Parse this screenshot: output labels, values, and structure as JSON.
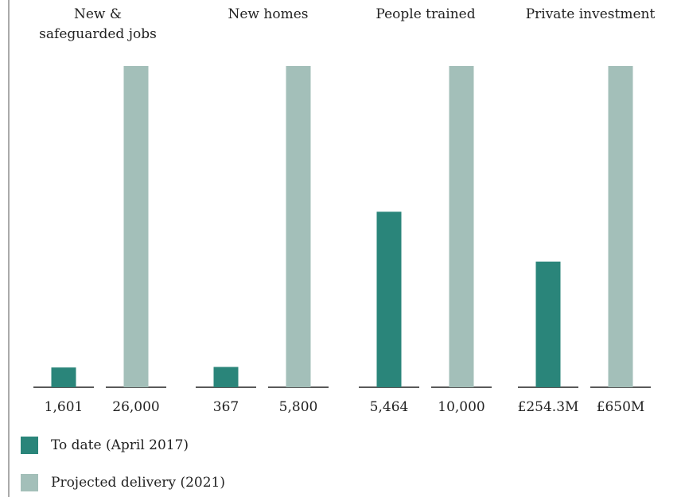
{
  "colors": {
    "to_date": "#2a857a",
    "projected": "#a3bfb9"
  },
  "legend": {
    "to_date_label": "To date (April 2017)",
    "projected_label": "Projected delivery (2021)"
  },
  "chart_data": {
    "type": "bar",
    "groups": [
      {
        "title": "New &\nsafeguarded jobs",
        "to_date": {
          "value": 1601,
          "label": "1,601"
        },
        "projected": {
          "value": 26000,
          "label": "26,000"
        },
        "unit": "jobs"
      },
      {
        "title": "New homes",
        "to_date": {
          "value": 367,
          "label": "367"
        },
        "projected": {
          "value": 5800,
          "label": "5,800"
        },
        "unit": "homes"
      },
      {
        "title": "People trained",
        "to_date": {
          "value": 5464,
          "label": "5,464"
        },
        "projected": {
          "value": 10000,
          "label": "10,000"
        },
        "unit": "people"
      },
      {
        "title": "Private investment",
        "to_date": {
          "value": 254.3,
          "label": "£254.3M"
        },
        "projected": {
          "value": 650,
          "label": "£650M"
        },
        "unit": "£M"
      }
    ],
    "series": [
      {
        "name": "To date (April 2017)"
      },
      {
        "name": "Projected delivery (2021)"
      }
    ],
    "scale": "each group scaled to its own projected value",
    "grid": false,
    "legend_position": "bottom-left"
  }
}
